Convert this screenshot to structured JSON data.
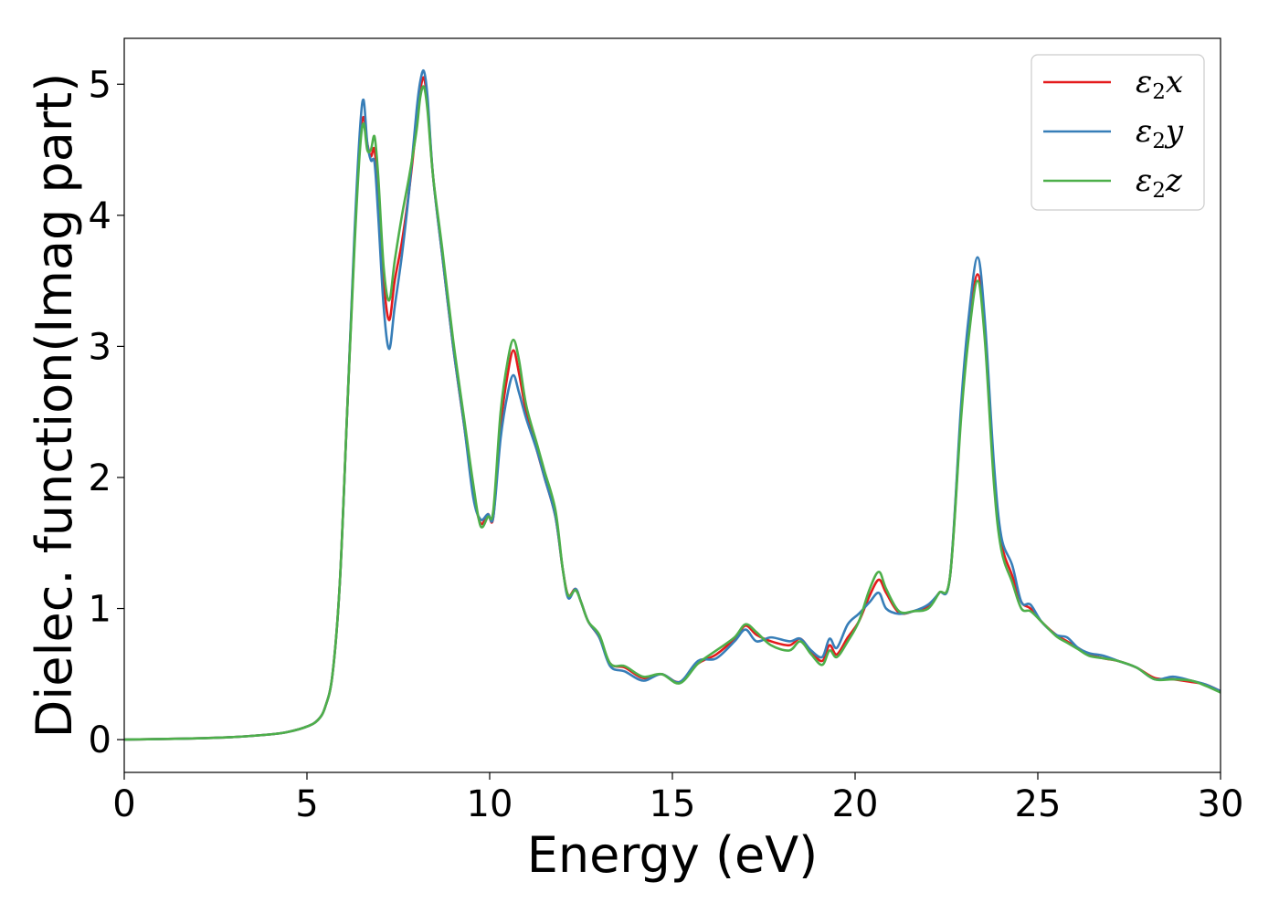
{
  "chart_data": {
    "type": "line",
    "xlabel": "Energy (eV)",
    "ylabel": "Dielec. function(Imag part)",
    "xlim": [
      0,
      30
    ],
    "ylim": [
      -0.25,
      5.35
    ],
    "xticks": [
      0,
      5,
      10,
      15,
      20,
      25,
      30
    ],
    "yticks": [
      0,
      1,
      2,
      3,
      4,
      5
    ],
    "grid": false,
    "legend_position": "top-right",
    "series": [
      {
        "name": "ε2x",
        "legend_base": "ε",
        "legend_sub": "2",
        "legend_tail": "x",
        "color": "#e41a1c",
        "points": [
          [
            0,
            0
          ],
          [
            1,
            0.005
          ],
          [
            2,
            0.01
          ],
          [
            3,
            0.02
          ],
          [
            4,
            0.04
          ],
          [
            4.5,
            0.06
          ],
          [
            5,
            0.1
          ],
          [
            5.3,
            0.15
          ],
          [
            5.5,
            0.25
          ],
          [
            5.7,
            0.5
          ],
          [
            5.9,
            1.2
          ],
          [
            6.1,
            2.5
          ],
          [
            6.3,
            3.8
          ],
          [
            6.45,
            4.55
          ],
          [
            6.55,
            4.75
          ],
          [
            6.65,
            4.55
          ],
          [
            6.75,
            4.45
          ],
          [
            6.85,
            4.5
          ],
          [
            6.95,
            4.15
          ],
          [
            7.1,
            3.5
          ],
          [
            7.25,
            3.2
          ],
          [
            7.4,
            3.5
          ],
          [
            7.6,
            3.8
          ],
          [
            7.8,
            4.2
          ],
          [
            8.0,
            4.7
          ],
          [
            8.1,
            4.95
          ],
          [
            8.2,
            5.05
          ],
          [
            8.3,
            4.85
          ],
          [
            8.45,
            4.3
          ],
          [
            8.7,
            3.7
          ],
          [
            9.0,
            3.0
          ],
          [
            9.3,
            2.4
          ],
          [
            9.55,
            1.9
          ],
          [
            9.75,
            1.65
          ],
          [
            9.95,
            1.72
          ],
          [
            10.1,
            1.7
          ],
          [
            10.3,
            2.4
          ],
          [
            10.5,
            2.8
          ],
          [
            10.65,
            2.97
          ],
          [
            10.8,
            2.8
          ],
          [
            11.0,
            2.5
          ],
          [
            11.3,
            2.2
          ],
          [
            11.5,
            2.0
          ],
          [
            11.8,
            1.7
          ],
          [
            12.0,
            1.3
          ],
          [
            12.15,
            1.1
          ],
          [
            12.35,
            1.15
          ],
          [
            12.5,
            1.05
          ],
          [
            12.7,
            0.9
          ],
          [
            13.0,
            0.78
          ],
          [
            13.3,
            0.58
          ],
          [
            13.7,
            0.55
          ],
          [
            14.2,
            0.47
          ],
          [
            14.7,
            0.5
          ],
          [
            15.2,
            0.44
          ],
          [
            15.7,
            0.58
          ],
          [
            16.2,
            0.65
          ],
          [
            16.7,
            0.77
          ],
          [
            17.0,
            0.87
          ],
          [
            17.3,
            0.8
          ],
          [
            17.7,
            0.75
          ],
          [
            18.2,
            0.72
          ],
          [
            18.5,
            0.77
          ],
          [
            18.8,
            0.67
          ],
          [
            19.1,
            0.6
          ],
          [
            19.3,
            0.72
          ],
          [
            19.5,
            0.65
          ],
          [
            19.8,
            0.78
          ],
          [
            20.1,
            0.9
          ],
          [
            20.4,
            1.1
          ],
          [
            20.65,
            1.22
          ],
          [
            20.85,
            1.12
          ],
          [
            21.2,
            0.97
          ],
          [
            21.6,
            0.98
          ],
          [
            22.0,
            1.02
          ],
          [
            22.3,
            1.12
          ],
          [
            22.6,
            1.25
          ],
          [
            22.9,
            2.5
          ],
          [
            23.1,
            3.1
          ],
          [
            23.35,
            3.55
          ],
          [
            23.55,
            3.1
          ],
          [
            23.8,
            2.0
          ],
          [
            24.0,
            1.5
          ],
          [
            24.3,
            1.25
          ],
          [
            24.55,
            1.05
          ],
          [
            24.8,
            1.0
          ],
          [
            25.1,
            0.9
          ],
          [
            25.5,
            0.8
          ],
          [
            25.8,
            0.75
          ],
          [
            26.1,
            0.7
          ],
          [
            26.4,
            0.65
          ],
          [
            26.8,
            0.62
          ],
          [
            27.2,
            0.6
          ],
          [
            27.7,
            0.55
          ],
          [
            28.2,
            0.47
          ],
          [
            28.7,
            0.46
          ],
          [
            29.2,
            0.44
          ],
          [
            29.6,
            0.42
          ],
          [
            30.0,
            0.37
          ]
        ]
      },
      {
        "name": "ε2y",
        "legend_base": "ε",
        "legend_sub": "2",
        "legend_tail": "y",
        "color": "#377eb8",
        "points": [
          [
            0,
            0
          ],
          [
            1,
            0.005
          ],
          [
            2,
            0.01
          ],
          [
            3,
            0.02
          ],
          [
            4,
            0.04
          ],
          [
            4.5,
            0.06
          ],
          [
            5,
            0.1
          ],
          [
            5.3,
            0.15
          ],
          [
            5.5,
            0.25
          ],
          [
            5.7,
            0.5
          ],
          [
            5.9,
            1.2
          ],
          [
            6.1,
            2.5
          ],
          [
            6.3,
            3.85
          ],
          [
            6.45,
            4.65
          ],
          [
            6.55,
            4.88
          ],
          [
            6.65,
            4.55
          ],
          [
            6.75,
            4.42
          ],
          [
            6.85,
            4.4
          ],
          [
            6.95,
            4.0
          ],
          [
            7.1,
            3.3
          ],
          [
            7.25,
            2.98
          ],
          [
            7.4,
            3.3
          ],
          [
            7.6,
            3.7
          ],
          [
            7.8,
            4.2
          ],
          [
            8.0,
            4.8
          ],
          [
            8.1,
            5.02
          ],
          [
            8.2,
            5.1
          ],
          [
            8.3,
            4.9
          ],
          [
            8.45,
            4.3
          ],
          [
            8.7,
            3.7
          ],
          [
            9.0,
            3.0
          ],
          [
            9.3,
            2.4
          ],
          [
            9.55,
            1.85
          ],
          [
            9.75,
            1.68
          ],
          [
            9.95,
            1.72
          ],
          [
            10.1,
            1.7
          ],
          [
            10.3,
            2.3
          ],
          [
            10.5,
            2.65
          ],
          [
            10.65,
            2.78
          ],
          [
            10.8,
            2.65
          ],
          [
            11.0,
            2.45
          ],
          [
            11.3,
            2.2
          ],
          [
            11.5,
            2.0
          ],
          [
            11.8,
            1.7
          ],
          [
            12.0,
            1.3
          ],
          [
            12.15,
            1.08
          ],
          [
            12.35,
            1.15
          ],
          [
            12.5,
            1.05
          ],
          [
            12.7,
            0.9
          ],
          [
            13.0,
            0.78
          ],
          [
            13.3,
            0.56
          ],
          [
            13.7,
            0.52
          ],
          [
            14.2,
            0.45
          ],
          [
            14.7,
            0.5
          ],
          [
            15.2,
            0.44
          ],
          [
            15.7,
            0.6
          ],
          [
            16.2,
            0.62
          ],
          [
            16.7,
            0.75
          ],
          [
            17.0,
            0.84
          ],
          [
            17.3,
            0.75
          ],
          [
            17.7,
            0.78
          ],
          [
            18.2,
            0.75
          ],
          [
            18.5,
            0.77
          ],
          [
            18.8,
            0.68
          ],
          [
            19.1,
            0.63
          ],
          [
            19.3,
            0.77
          ],
          [
            19.5,
            0.7
          ],
          [
            19.8,
            0.88
          ],
          [
            20.1,
            0.96
          ],
          [
            20.4,
            1.05
          ],
          [
            20.65,
            1.12
          ],
          [
            20.85,
            1.0
          ],
          [
            21.2,
            0.96
          ],
          [
            21.6,
            0.98
          ],
          [
            22.0,
            1.03
          ],
          [
            22.3,
            1.12
          ],
          [
            22.6,
            1.25
          ],
          [
            22.9,
            2.55
          ],
          [
            23.1,
            3.2
          ],
          [
            23.35,
            3.68
          ],
          [
            23.55,
            3.2
          ],
          [
            23.8,
            2.1
          ],
          [
            24.0,
            1.55
          ],
          [
            24.3,
            1.33
          ],
          [
            24.55,
            1.05
          ],
          [
            24.8,
            1.03
          ],
          [
            25.1,
            0.9
          ],
          [
            25.5,
            0.8
          ],
          [
            25.8,
            0.78
          ],
          [
            26.1,
            0.7
          ],
          [
            26.4,
            0.66
          ],
          [
            26.8,
            0.64
          ],
          [
            27.2,
            0.6
          ],
          [
            27.7,
            0.55
          ],
          [
            28.2,
            0.46
          ],
          [
            28.7,
            0.48
          ],
          [
            29.2,
            0.45
          ],
          [
            29.6,
            0.42
          ],
          [
            30.0,
            0.37
          ]
        ]
      },
      {
        "name": "ε2z",
        "legend_base": "ε",
        "legend_sub": "2",
        "legend_tail": "z",
        "color": "#4daf4a",
        "points": [
          [
            0,
            0
          ],
          [
            1,
            0.005
          ],
          [
            2,
            0.01
          ],
          [
            3,
            0.02
          ],
          [
            4,
            0.04
          ],
          [
            4.5,
            0.06
          ],
          [
            5,
            0.1
          ],
          [
            5.3,
            0.15
          ],
          [
            5.5,
            0.25
          ],
          [
            5.7,
            0.5
          ],
          [
            5.9,
            1.2
          ],
          [
            6.1,
            2.5
          ],
          [
            6.3,
            3.75
          ],
          [
            6.45,
            4.5
          ],
          [
            6.55,
            4.7
          ],
          [
            6.65,
            4.5
          ],
          [
            6.75,
            4.5
          ],
          [
            6.85,
            4.6
          ],
          [
            6.95,
            4.3
          ],
          [
            7.1,
            3.6
          ],
          [
            7.25,
            3.35
          ],
          [
            7.4,
            3.65
          ],
          [
            7.6,
            4.0
          ],
          [
            7.8,
            4.3
          ],
          [
            8.0,
            4.65
          ],
          [
            8.1,
            4.9
          ],
          [
            8.2,
            4.98
          ],
          [
            8.3,
            4.8
          ],
          [
            8.45,
            4.3
          ],
          [
            8.7,
            3.75
          ],
          [
            9.0,
            3.05
          ],
          [
            9.3,
            2.45
          ],
          [
            9.55,
            1.95
          ],
          [
            9.75,
            1.63
          ],
          [
            9.95,
            1.7
          ],
          [
            10.1,
            1.75
          ],
          [
            10.3,
            2.5
          ],
          [
            10.5,
            2.9
          ],
          [
            10.65,
            3.05
          ],
          [
            10.8,
            2.9
          ],
          [
            11.0,
            2.55
          ],
          [
            11.3,
            2.25
          ],
          [
            11.5,
            2.05
          ],
          [
            11.8,
            1.75
          ],
          [
            12.0,
            1.3
          ],
          [
            12.15,
            1.1
          ],
          [
            12.35,
            1.14
          ],
          [
            12.5,
            1.05
          ],
          [
            12.7,
            0.9
          ],
          [
            13.0,
            0.8
          ],
          [
            13.3,
            0.58
          ],
          [
            13.7,
            0.56
          ],
          [
            14.2,
            0.48
          ],
          [
            14.7,
            0.5
          ],
          [
            15.2,
            0.43
          ],
          [
            15.7,
            0.58
          ],
          [
            16.2,
            0.68
          ],
          [
            16.7,
            0.78
          ],
          [
            17.0,
            0.88
          ],
          [
            17.3,
            0.82
          ],
          [
            17.7,
            0.72
          ],
          [
            18.2,
            0.68
          ],
          [
            18.5,
            0.75
          ],
          [
            18.8,
            0.65
          ],
          [
            19.1,
            0.57
          ],
          [
            19.3,
            0.68
          ],
          [
            19.5,
            0.63
          ],
          [
            19.8,
            0.75
          ],
          [
            20.1,
            0.9
          ],
          [
            20.4,
            1.15
          ],
          [
            20.65,
            1.28
          ],
          [
            20.85,
            1.15
          ],
          [
            21.2,
            0.98
          ],
          [
            21.6,
            0.98
          ],
          [
            22.0,
            1.0
          ],
          [
            22.3,
            1.12
          ],
          [
            22.6,
            1.25
          ],
          [
            22.9,
            2.45
          ],
          [
            23.1,
            3.05
          ],
          [
            23.35,
            3.5
          ],
          [
            23.55,
            3.05
          ],
          [
            23.8,
            1.95
          ],
          [
            24.0,
            1.45
          ],
          [
            24.3,
            1.2
          ],
          [
            24.55,
            1.0
          ],
          [
            24.8,
            0.98
          ],
          [
            25.1,
            0.9
          ],
          [
            25.5,
            0.79
          ],
          [
            25.8,
            0.74
          ],
          [
            26.1,
            0.69
          ],
          [
            26.4,
            0.64
          ],
          [
            26.8,
            0.62
          ],
          [
            27.2,
            0.6
          ],
          [
            27.7,
            0.55
          ],
          [
            28.2,
            0.46
          ],
          [
            28.7,
            0.46
          ],
          [
            29.2,
            0.45
          ],
          [
            29.6,
            0.41
          ],
          [
            30.0,
            0.36
          ]
        ]
      }
    ]
  }
}
